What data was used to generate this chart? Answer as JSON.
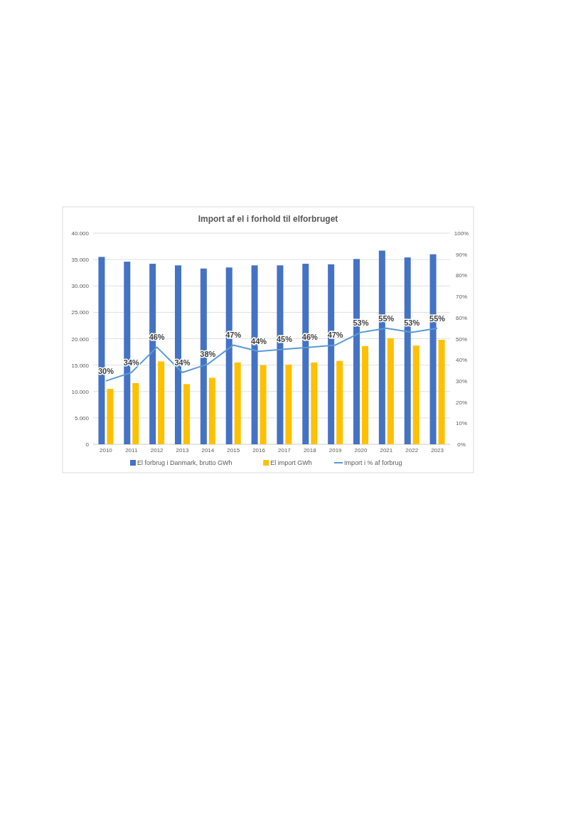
{
  "chart_data": {
    "type": "bar",
    "title": "Import af el i forhold til elforbruget",
    "categories": [
      "2010",
      "2011",
      "2012",
      "2013",
      "2014",
      "2015",
      "2016",
      "2017",
      "2018",
      "2019",
      "2020",
      "2021",
      "2022",
      "2023"
    ],
    "series": [
      {
        "name": "El forbrug i Danmark, brutto GWh",
        "color": "#4472c4",
        "values": [
          35500,
          34600,
          34200,
          33900,
          33300,
          33500,
          33900,
          33900,
          34200,
          34100,
          35100,
          36700,
          35400,
          36000
        ]
      },
      {
        "name": "El import GWh",
        "color": "#ffc000",
        "values": [
          10500,
          11600,
          15700,
          11400,
          12600,
          15500,
          15000,
          15100,
          15500,
          15800,
          18600,
          20100,
          18700,
          19800
        ]
      },
      {
        "name": "Import i % af forbrug",
        "type": "line",
        "axis": "y2",
        "color": "#5b9bd5",
        "values": [
          30,
          34,
          46,
          34,
          38,
          47,
          44,
          45,
          46,
          47,
          53,
          55,
          53,
          55
        ],
        "value_labels": [
          "30%",
          "34%",
          "46%",
          "34%",
          "38%",
          "47%",
          "44%",
          "45%",
          "46%",
          "47%",
          "53%",
          "55%",
          "53%",
          "55%"
        ]
      }
    ],
    "ylim": [
      0,
      40000
    ],
    "yticks": [
      {
        "value": 0,
        "label": "0"
      },
      {
        "value": 5000,
        "label": "5.000"
      },
      {
        "value": 10000,
        "label": "10.000"
      },
      {
        "value": 15000,
        "label": "15.000"
      },
      {
        "value": 20000,
        "label": "20.000"
      },
      {
        "value": 25000,
        "label": "25.000"
      },
      {
        "value": 30000,
        "label": "30.000"
      },
      {
        "value": 35000,
        "label": "35.000"
      },
      {
        "value": 40000,
        "label": "40.000"
      }
    ],
    "y2lim": [
      0,
      100
    ],
    "y2ticks": [
      {
        "value": 0,
        "label": "0%"
      },
      {
        "value": 10,
        "label": "10%"
      },
      {
        "value": 20,
        "label": "20%"
      },
      {
        "value": 30,
        "label": "30%"
      },
      {
        "value": 40,
        "label": "40%"
      },
      {
        "value": 50,
        "label": "50%"
      },
      {
        "value": 60,
        "label": "60%"
      },
      {
        "value": 70,
        "label": "70%"
      },
      {
        "value": 80,
        "label": "80%"
      },
      {
        "value": 90,
        "label": "90%"
      },
      {
        "value": 100,
        "label": "100%"
      }
    ],
    "grid": "y",
    "legend": "bottom"
  }
}
